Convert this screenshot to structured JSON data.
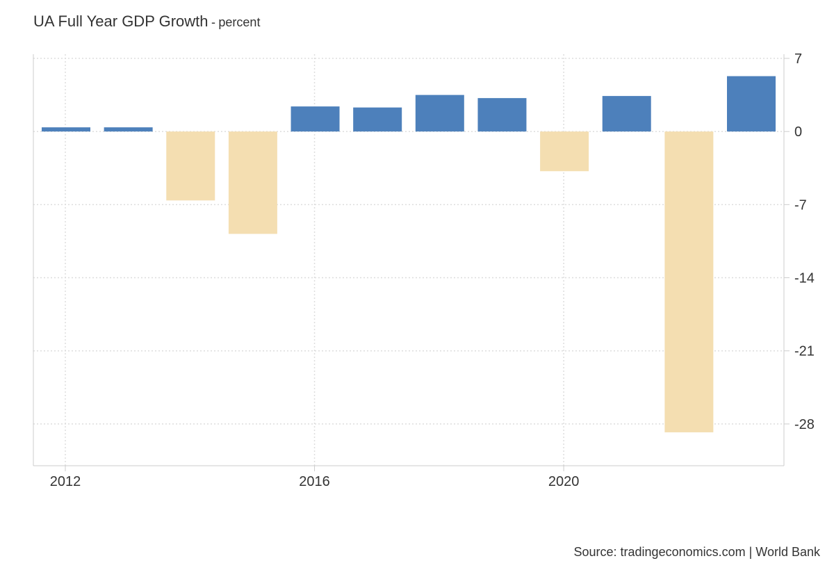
{
  "chart_data": {
    "type": "bar",
    "title": "UA Full Year GDP Growth",
    "title_separator": "-",
    "subtitle": "percent",
    "xlabel": "",
    "ylabel": "",
    "categories": [
      "2012",
      "2013",
      "2014",
      "2015",
      "2016",
      "2017",
      "2018",
      "2019",
      "2020",
      "2021",
      "2022",
      "2023"
    ],
    "values": [
      0.4,
      0.4,
      -6.6,
      -9.8,
      2.4,
      2.3,
      3.5,
      3.2,
      -3.8,
      3.4,
      -28.8,
      5.3
    ],
    "ylim": [
      -32,
      7.4
    ],
    "y_ticks": [
      7,
      0,
      -7,
      -14,
      -21,
      -28
    ],
    "y_tick_labels": [
      "7",
      "0",
      "-7",
      "-14",
      "-21",
      "-28"
    ],
    "x_ticks": [
      "2012",
      "2016",
      "2020"
    ],
    "y_axis_position": "right",
    "grid": true,
    "colors": {
      "positive": "#4d80bb",
      "negative": "#f4deb1",
      "grid": "#dddddd",
      "axis": "#cccccc",
      "text": "#333333"
    }
  },
  "source": "Source: tradingeconomics.com | World Bank"
}
